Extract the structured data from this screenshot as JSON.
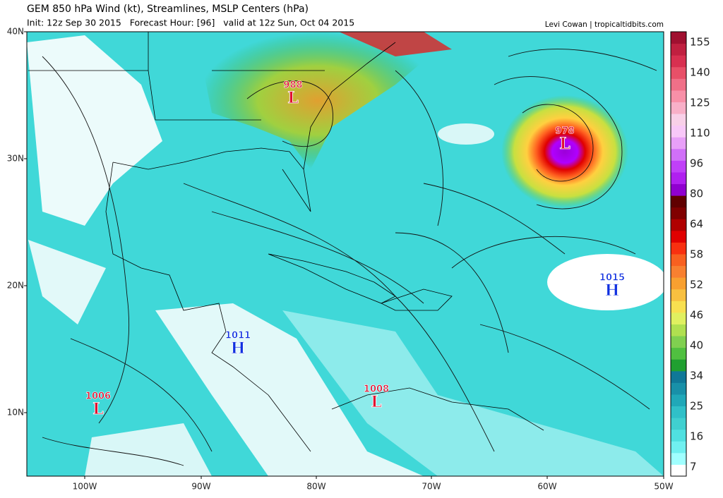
{
  "header": {
    "title": "GEM 850 hPa Wind (kt), Streamlines, MSLP Centers (hPa)",
    "subtitle": "Init: 12z Sep 30 2015   Forecast Hour: [96]   valid at 12z Sun, Oct 04 2015",
    "credit": "Levi Cowan | tropicaltidbits.com"
  },
  "latitude_labels": [
    "40N",
    "30N",
    "20N",
    "10N"
  ],
  "longitude_labels": [
    "100W",
    "90W",
    "80W",
    "70W",
    "60W",
    "50W"
  ],
  "colorbar": {
    "labels": [
      "155",
      "140",
      "125",
      "110",
      "96",
      "80",
      "64",
      "58",
      "52",
      "46",
      "40",
      "34",
      "25",
      "16",
      "7"
    ]
  },
  "pressure_centers": [
    {
      "pressure": "988",
      "symbol": "L"
    },
    {
      "pressure": "978",
      "symbol": "L"
    },
    {
      "pressure": "1015",
      "symbol": "H"
    },
    {
      "pressure": "1011",
      "symbol": "H"
    },
    {
      "pressure": "1006",
      "symbol": "L"
    },
    {
      "pressure": "1008",
      "symbol": "L"
    }
  ]
}
